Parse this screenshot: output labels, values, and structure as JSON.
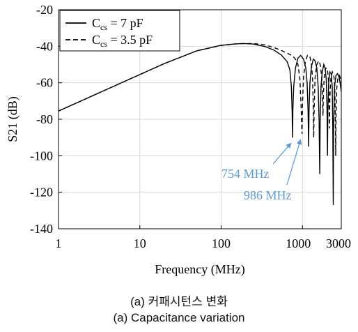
{
  "chart_data": {
    "type": "line",
    "xlabel": "Frequency (MHz)",
    "ylabel": "S21 (dB)",
    "x_scale": "log",
    "xlim": [
      1,
      3000
    ],
    "ylim": [
      -140,
      -20
    ],
    "x_ticks": [
      1,
      10,
      100,
      1000,
      3000
    ],
    "x_tick_labels": [
      "1",
      "10",
      "100",
      "1000",
      "3000"
    ],
    "y_ticks": [
      -140,
      -120,
      -100,
      -80,
      -60,
      -40,
      -20
    ],
    "y_tick_labels": [
      "-140",
      "-120",
      "-100",
      "-80",
      "-60",
      "-40",
      "-20"
    ],
    "grid": true,
    "legend": {
      "placement": "top-left",
      "entries": [
        {
          "base": "C",
          "sub": "cs",
          "rest": " = 7 pF",
          "style": "solid"
        },
        {
          "base": "C",
          "sub": "cs",
          "rest": " = 3.5 pF",
          "style": "dashed"
        }
      ]
    },
    "series": [
      {
        "name": "Ccs = 7 pF",
        "style": "solid",
        "color": "#000000",
        "points": [
          [
            1,
            -75.5
          ],
          [
            2,
            -69.5
          ],
          [
            5,
            -61.5
          ],
          [
            10,
            -55.5
          ],
          [
            20,
            -49.5
          ],
          [
            50,
            -42.5
          ],
          [
            100,
            -39.5
          ],
          [
            150,
            -38.7
          ],
          [
            190,
            -38.5
          ],
          [
            250,
            -38.8
          ],
          [
            350,
            -40.2
          ],
          [
            450,
            -42.2
          ],
          [
            550,
            -44.8
          ],
          [
            650,
            -48.5
          ],
          [
            700,
            -53
          ],
          [
            730,
            -62
          ],
          [
            745,
            -75
          ],
          [
            754,
            -90
          ],
          [
            762,
            -75
          ],
          [
            780,
            -62
          ],
          [
            820,
            -52
          ],
          [
            880,
            -46.5
          ],
          [
            950,
            -45
          ],
          [
            1030,
            -47
          ],
          [
            1100,
            -52
          ],
          [
            1140,
            -60
          ],
          [
            1170,
            -75
          ],
          [
            1190,
            -95
          ],
          [
            1205,
            -75
          ],
          [
            1235,
            -60
          ],
          [
            1290,
            -51
          ],
          [
            1360,
            -47
          ],
          [
            1430,
            -48
          ],
          [
            1500,
            -52
          ],
          [
            1560,
            -62
          ],
          [
            1600,
            -80
          ],
          [
            1630,
            -110
          ],
          [
            1650,
            -80
          ],
          [
            1690,
            -62
          ],
          [
            1750,
            -54
          ],
          [
            1830,
            -50
          ],
          [
            1900,
            -52
          ],
          [
            1960,
            -58
          ],
          [
            2000,
            -72
          ],
          [
            2030,
            -100
          ],
          [
            2050,
            -75
          ],
          [
            2100,
            -60
          ],
          [
            2170,
            -54
          ],
          [
            2250,
            -55
          ],
          [
            2320,
            -62
          ],
          [
            2360,
            -85
          ],
          [
            2390,
            -127
          ],
          [
            2410,
            -85
          ],
          [
            2480,
            -62
          ],
          [
            2580,
            -56
          ],
          [
            2700,
            -55
          ],
          [
            2820,
            -57
          ],
          [
            2900,
            -60
          ],
          [
            3000,
            -65
          ]
        ]
      },
      {
        "name": "Ccs = 3.5 pF",
        "style": "dashed",
        "color": "#000000",
        "points": [
          [
            1,
            -75.5
          ],
          [
            2,
            -69.5
          ],
          [
            5,
            -61.5
          ],
          [
            10,
            -55.5
          ],
          [
            20,
            -49.5
          ],
          [
            50,
            -42.5
          ],
          [
            100,
            -39.5
          ],
          [
            150,
            -38.7
          ],
          [
            190,
            -38.5
          ],
          [
            250,
            -38.5
          ],
          [
            350,
            -39.3
          ],
          [
            450,
            -40.8
          ],
          [
            550,
            -42.3
          ],
          [
            650,
            -43.8
          ],
          [
            750,
            -45.2
          ],
          [
            820,
            -47
          ],
          [
            880,
            -50
          ],
          [
            930,
            -58
          ],
          [
            960,
            -72
          ],
          [
            986,
            -88
          ],
          [
            1000,
            -72
          ],
          [
            1030,
            -57
          ],
          [
            1080,
            -49
          ],
          [
            1150,
            -45
          ],
          [
            1230,
            -45.5
          ],
          [
            1290,
            -50
          ],
          [
            1330,
            -58
          ],
          [
            1355,
            -72
          ],
          [
            1375,
            -90
          ],
          [
            1395,
            -72
          ],
          [
            1430,
            -57
          ],
          [
            1500,
            -50
          ],
          [
            1580,
            -48
          ],
          [
            1650,
            -50
          ],
          [
            1720,
            -56
          ],
          [
            1760,
            -66
          ],
          [
            1785,
            -78
          ],
          [
            1810,
            -66
          ],
          [
            1850,
            -57
          ],
          [
            1930,
            -52
          ],
          [
            2010,
            -52
          ],
          [
            2080,
            -57
          ],
          [
            2120,
            -70
          ],
          [
            2145,
            -85
          ],
          [
            2170,
            -68
          ],
          [
            2230,
            -58
          ],
          [
            2330,
            -54
          ],
          [
            2430,
            -56
          ],
          [
            2490,
            -62
          ],
          [
            2530,
            -80
          ],
          [
            2560,
            -100
          ],
          [
            2590,
            -78
          ],
          [
            2640,
            -63
          ],
          [
            2730,
            -57
          ],
          [
            2850,
            -56
          ],
          [
            2950,
            -58
          ],
          [
            3000,
            -60
          ]
        ]
      }
    ],
    "annotations": [
      {
        "text": "754 MHz",
        "color": "#5b9bd5",
        "x": 754,
        "y": -90
      },
      {
        "text": "986 MHz",
        "color": "#5b9bd5",
        "x": 986,
        "y": -88
      }
    ]
  },
  "caption": {
    "line1": "(a) 커패시턴스 변화",
    "line2": "(a) Capacitance variation"
  }
}
